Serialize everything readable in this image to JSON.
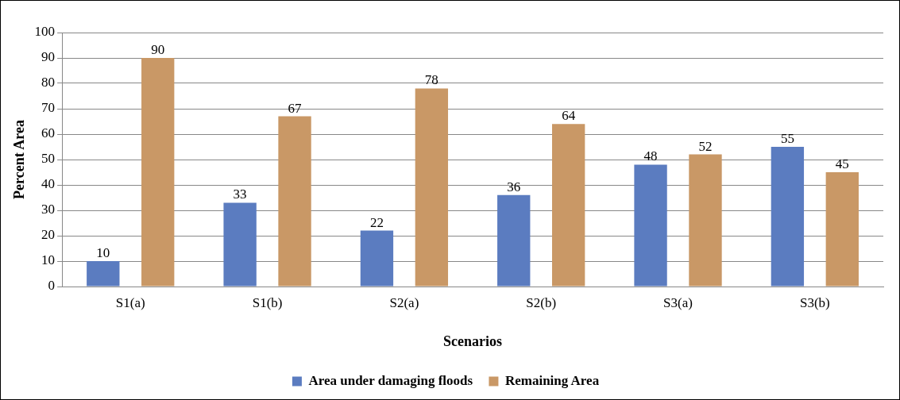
{
  "chart_data": {
    "type": "bar",
    "xlabel": "Scenarios",
    "ylabel": "Percent Area",
    "categories": [
      "S1(a)",
      "S1(b)",
      "S2(a)",
      "S2(b)",
      "S3(a)",
      "S3(b)"
    ],
    "series": [
      {
        "name": "Area under damaging floods",
        "color": "#5b7cc0",
        "values": [
          10,
          33,
          22,
          36,
          48,
          55
        ]
      },
      {
        "name": "Remaining Area",
        "color": "#c99866",
        "values": [
          90,
          67,
          78,
          64,
          52,
          45
        ]
      }
    ],
    "ylim": [
      0,
      100
    ],
    "yticks": [
      0,
      10,
      20,
      30,
      40,
      50,
      60,
      70,
      80,
      90,
      100
    ],
    "grid": "y",
    "legend": "bottom",
    "data_labels": true
  }
}
